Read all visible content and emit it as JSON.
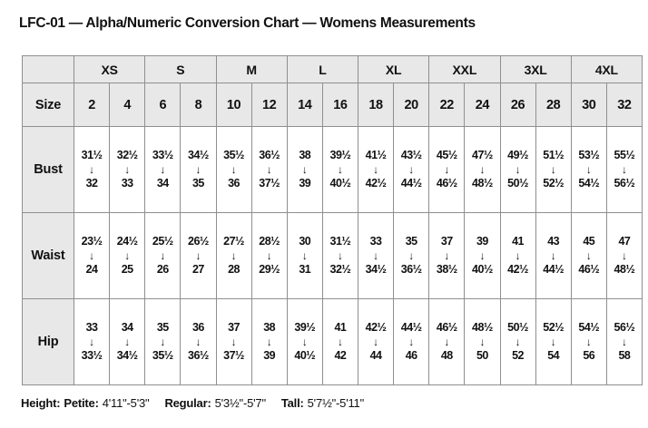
{
  "chart_data": {
    "type": "table",
    "title": "LFC-01 — Alpha/Numeric Conversion Chart — Womens Measurements",
    "corner_label": "",
    "alpha_sizes": [
      "XS",
      "S",
      "M",
      "L",
      "XL",
      "XXL",
      "3XL",
      "4XL"
    ],
    "size_row_label": "Size",
    "numeric_sizes": [
      "2",
      "4",
      "6",
      "8",
      "10",
      "12",
      "14",
      "16",
      "18",
      "20",
      "22",
      "24",
      "26",
      "28",
      "30",
      "32"
    ],
    "arrow_icon": "↓",
    "measurements": [
      {
        "label": "Bust",
        "ranges": [
          [
            "31½",
            "32"
          ],
          [
            "32½",
            "33"
          ],
          [
            "33½",
            "34"
          ],
          [
            "34½",
            "35"
          ],
          [
            "35½",
            "36"
          ],
          [
            "36½",
            "37½"
          ],
          [
            "38",
            "39"
          ],
          [
            "39½",
            "40½"
          ],
          [
            "41½",
            "42½"
          ],
          [
            "43½",
            "44½"
          ],
          [
            "45½",
            "46½"
          ],
          [
            "47½",
            "48½"
          ],
          [
            "49½",
            "50½"
          ],
          [
            "51½",
            "52½"
          ],
          [
            "53½",
            "54½"
          ],
          [
            "55½",
            "56½"
          ]
        ]
      },
      {
        "label": "Waist",
        "ranges": [
          [
            "23½",
            "24"
          ],
          [
            "24½",
            "25"
          ],
          [
            "25½",
            "26"
          ],
          [
            "26½",
            "27"
          ],
          [
            "27½",
            "28"
          ],
          [
            "28½",
            "29½"
          ],
          [
            "30",
            "31"
          ],
          [
            "31½",
            "32½"
          ],
          [
            "33",
            "34½"
          ],
          [
            "35",
            "36½"
          ],
          [
            "37",
            "38½"
          ],
          [
            "39",
            "40½"
          ],
          [
            "41",
            "42½"
          ],
          [
            "43",
            "44½"
          ],
          [
            "45",
            "46½"
          ],
          [
            "47",
            "48½"
          ]
        ]
      },
      {
        "label": "Hip",
        "ranges": [
          [
            "33",
            "33½"
          ],
          [
            "34",
            "34½"
          ],
          [
            "35",
            "35½"
          ],
          [
            "36",
            "36½"
          ],
          [
            "37",
            "37½"
          ],
          [
            "38",
            "39"
          ],
          [
            "39½",
            "40½"
          ],
          [
            "41",
            "42"
          ],
          [
            "42½",
            "44"
          ],
          [
            "44½",
            "46"
          ],
          [
            "46½",
            "48"
          ],
          [
            "48½",
            "50"
          ],
          [
            "50½",
            "52"
          ],
          [
            "52½",
            "54"
          ],
          [
            "54½",
            "56"
          ],
          [
            "56½",
            "58"
          ]
        ]
      }
    ]
  },
  "footer": {
    "height_label": "Height:",
    "segments": [
      {
        "label": "Petite:",
        "value": "4'11\"-5'3\""
      },
      {
        "label": "Regular:",
        "value": "5'3½\"-5'7\""
      },
      {
        "label": "Tall:",
        "value": "5'7½\"-5'11\""
      }
    ]
  },
  "colors": {
    "background": "#ffffff",
    "header_cell_bg": "#e8e8e8",
    "grid_border": "#8f8f8f",
    "text": "#111111"
  }
}
